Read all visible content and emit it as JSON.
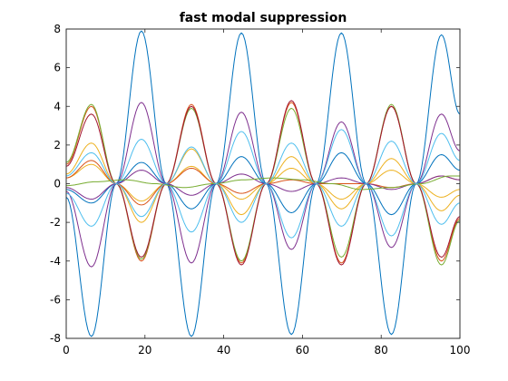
{
  "chart_data": {
    "type": "line",
    "title": "fast modal suppression",
    "xlabel": "",
    "ylabel": "",
    "xlim": [
      0,
      100
    ],
    "ylim": [
      -8,
      8
    ],
    "xticks": [
      0,
      20,
      40,
      60,
      80,
      100
    ],
    "yticks": [
      -8,
      -6,
      -4,
      -2,
      0,
      2,
      4,
      6,
      8
    ],
    "grid": false,
    "legend": "none",
    "series": [
      {
        "color": "#0072BD",
        "x": [
          0,
          6.4,
          12.7,
          19.1,
          25.4,
          31.8,
          38.1,
          44.5,
          50.8,
          57.2,
          63.5,
          69.9,
          76.2,
          82.6,
          88.9,
          95.3,
          100
        ],
        "y": [
          -0.7,
          -7.9,
          0.0,
          7.9,
          0.0,
          -7.9,
          0.0,
          7.8,
          0.0,
          -7.8,
          0.0,
          7.8,
          0.0,
          -7.8,
          0.0,
          7.7,
          3.6
        ]
      },
      {
        "color": "#D95319",
        "x": [
          0,
          6.4,
          12.7,
          19.1,
          25.4,
          31.8,
          38.1,
          44.5,
          50.8,
          57.2,
          63.5,
          69.9,
          76.2,
          82.6,
          88.9,
          95.3,
          100
        ],
        "y": [
          1.0,
          4.0,
          0.0,
          -4.0,
          0.0,
          4.1,
          0.0,
          -4.1,
          0.0,
          4.2,
          0.0,
          -4.1,
          0.0,
          4.0,
          0.0,
          -4.0,
          -1.8
        ]
      },
      {
        "color": "#EDB120",
        "x": [
          0,
          6.4,
          12.7,
          19.1,
          25.4,
          31.8,
          38.1,
          44.5,
          50.8,
          57.2,
          63.5,
          69.9,
          76.2,
          82.6,
          88.9,
          95.3,
          100
        ],
        "y": [
          0.3,
          1.0,
          0.0,
          -0.9,
          0.0,
          0.9,
          0.0,
          -0.8,
          0.0,
          0.8,
          0.0,
          -0.8,
          0.0,
          0.7,
          0.0,
          -0.7,
          -0.3
        ]
      },
      {
        "color": "#7E2F8E",
        "x": [
          0,
          6.4,
          12.7,
          19.1,
          25.4,
          31.8,
          38.1,
          44.5,
          50.8,
          57.2,
          63.5,
          69.9,
          76.2,
          82.6,
          88.9,
          95.3,
          100
        ],
        "y": [
          -0.4,
          -4.3,
          0.0,
          4.2,
          0.0,
          -4.1,
          0.0,
          3.7,
          0.0,
          -3.4,
          0.0,
          3.2,
          0.0,
          -3.3,
          0.0,
          3.6,
          1.7
        ]
      },
      {
        "color": "#77AC30",
        "x": [
          0,
          6.4,
          12.7,
          19.1,
          25.4,
          31.8,
          38.1,
          44.5,
          50.8,
          57.2,
          63.5,
          69.9,
          76.2,
          82.6,
          88.9,
          95.3,
          100
        ],
        "y": [
          1.1,
          4.1,
          0.0,
          -3.9,
          0.0,
          3.9,
          0.0,
          -4.0,
          0.0,
          3.9,
          0.0,
          -3.8,
          0.0,
          4.1,
          0.0,
          -4.2,
          -1.9
        ]
      },
      {
        "color": "#4DBEEE",
        "x": [
          0,
          6.4,
          12.7,
          19.1,
          25.4,
          31.8,
          38.1,
          44.5,
          50.8,
          57.2,
          63.5,
          69.9,
          76.2,
          82.6,
          88.9,
          95.3,
          100
        ],
        "y": [
          -0.5,
          -2.2,
          0.0,
          2.3,
          0.0,
          -2.5,
          0.0,
          2.7,
          0.0,
          -2.8,
          0.0,
          2.8,
          0.0,
          -2.7,
          0.0,
          2.6,
          1.2
        ]
      },
      {
        "color": "#A2142F",
        "x": [
          0,
          6.4,
          12.7,
          19.1,
          25.4,
          31.8,
          38.1,
          44.5,
          50.8,
          57.2,
          63.5,
          69.9,
          76.2,
          82.6,
          88.9,
          95.3,
          100
        ],
        "y": [
          0.9,
          3.6,
          0.0,
          -3.8,
          0.0,
          4.0,
          0.0,
          -4.2,
          0.0,
          4.3,
          0.0,
          -4.2,
          0.0,
          4.0,
          0.0,
          -3.8,
          -1.7
        ]
      },
      {
        "color": "#0072BD",
        "x": [
          0,
          6.4,
          12.7,
          19.1,
          25.4,
          31.8,
          38.1,
          44.5,
          50.8,
          57.2,
          63.5,
          69.9,
          76.2,
          82.6,
          88.9,
          95.3,
          100
        ],
        "y": [
          -0.3,
          -1.0,
          0.0,
          1.1,
          0.0,
          -1.3,
          0.0,
          1.4,
          0.0,
          -1.5,
          0.0,
          1.6,
          0.0,
          -1.6,
          0.0,
          1.5,
          0.7
        ]
      },
      {
        "color": "#D95319",
        "x": [
          0,
          6.4,
          12.7,
          19.1,
          25.4,
          31.8,
          38.1,
          44.5,
          50.8,
          57.2,
          63.5,
          69.9,
          76.2,
          82.6,
          88.9,
          95.3,
          100
        ],
        "y": [
          0.3,
          1.2,
          0.0,
          -1.1,
          0.0,
          0.8,
          0.0,
          -0.5,
          0.0,
          0.2,
          0.0,
          0.0,
          0.0,
          -0.2,
          0.0,
          0.4,
          0.2
        ]
      },
      {
        "color": "#EDB120",
        "x": [
          0,
          6.4,
          12.7,
          19.1,
          25.4,
          31.8,
          38.1,
          44.5,
          50.8,
          57.2,
          63.5,
          69.9,
          76.2,
          82.6,
          88.9,
          95.3,
          100
        ],
        "y": [
          0.5,
          2.1,
          0.0,
          -2.0,
          0.0,
          1.8,
          0.0,
          -1.6,
          0.0,
          1.4,
          0.0,
          -1.3,
          0.0,
          1.3,
          0.0,
          -1.4,
          -0.6
        ]
      },
      {
        "color": "#7E2F8E",
        "x": [
          0,
          6.4,
          12.7,
          19.1,
          25.4,
          31.8,
          38.1,
          44.5,
          50.8,
          57.2,
          63.5,
          69.9,
          76.2,
          82.6,
          88.9,
          95.3,
          100
        ],
        "y": [
          -0.2,
          -0.8,
          0.0,
          0.7,
          0.0,
          -0.6,
          0.0,
          0.5,
          0.0,
          -0.4,
          0.0,
          0.3,
          0.0,
          -0.3,
          0.0,
          0.4,
          0.2
        ]
      },
      {
        "color": "#77AC30",
        "x": [
          0,
          7.5,
          15,
          22.5,
          30,
          37.5,
          45,
          52.5,
          60,
          67.5,
          75,
          82.5,
          90,
          97.5,
          100
        ],
        "y": [
          -0.1,
          0.1,
          0.2,
          0.0,
          -0.2,
          0.0,
          0.2,
          0.3,
          0.2,
          0.0,
          -0.3,
          -0.2,
          0.0,
          0.4,
          0.4
        ]
      },
      {
        "color": "#4DBEEE",
        "x": [
          0,
          6.4,
          12.7,
          19.1,
          25.4,
          31.8,
          38.1,
          44.5,
          50.8,
          57.2,
          63.5,
          69.9,
          76.2,
          82.6,
          88.9,
          95.3,
          100
        ],
        "y": [
          0.4,
          1.6,
          0.0,
          -1.7,
          0.0,
          1.9,
          0.0,
          -2.0,
          0.0,
          2.1,
          0.0,
          -2.2,
          0.0,
          2.2,
          0.0,
          -2.1,
          -1.0
        ]
      }
    ]
  }
}
